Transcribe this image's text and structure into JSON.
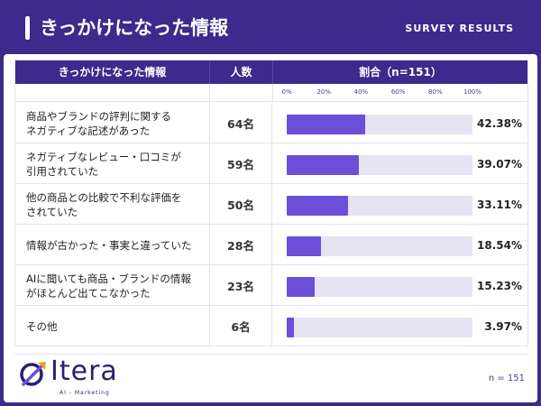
{
  "header": {
    "title": "きっかけになった情報",
    "badge": "SURVEY RESULTS"
  },
  "table": {
    "col_label": "きっかけになった情報",
    "col_count": "人数",
    "col_ratio": "割合（n=151）"
  },
  "chart_data": {
    "type": "bar",
    "orientation": "horizontal",
    "xlim": [
      0,
      100
    ],
    "ticks": [
      "0%",
      "20%",
      "40%",
      "60%",
      "80%",
      "100%"
    ],
    "categories": [
      "商品やブランドの評判に関する\nネガティブな記述があった",
      "ネガティブなレビュー・口コミが\n引用されていた",
      "他の商品との比較で不利な評価を\nされていた",
      "情報が古かった・事実と違っていた",
      "AIに聞いても商品・ブランドの情報\nがほとんど出てこなかった",
      "その他"
    ],
    "counts": [
      "64名",
      "59名",
      "50名",
      "28名",
      "23名",
      "6名"
    ],
    "values": [
      42.38,
      39.07,
      33.11,
      18.54,
      15.23,
      3.97
    ],
    "value_labels": [
      "42.38%",
      "39.07%",
      "33.11%",
      "18.54%",
      "15.23%",
      "3.97%"
    ],
    "bar_color": "#6b4fd8",
    "track_color": "#e6e3f2"
  },
  "footer": {
    "logo": "Itera",
    "logo_sub": "AI - Marketing",
    "note": "n = 151"
  },
  "colors": {
    "brand": "#3d2a8c",
    "accent": "#6b4fd8"
  }
}
